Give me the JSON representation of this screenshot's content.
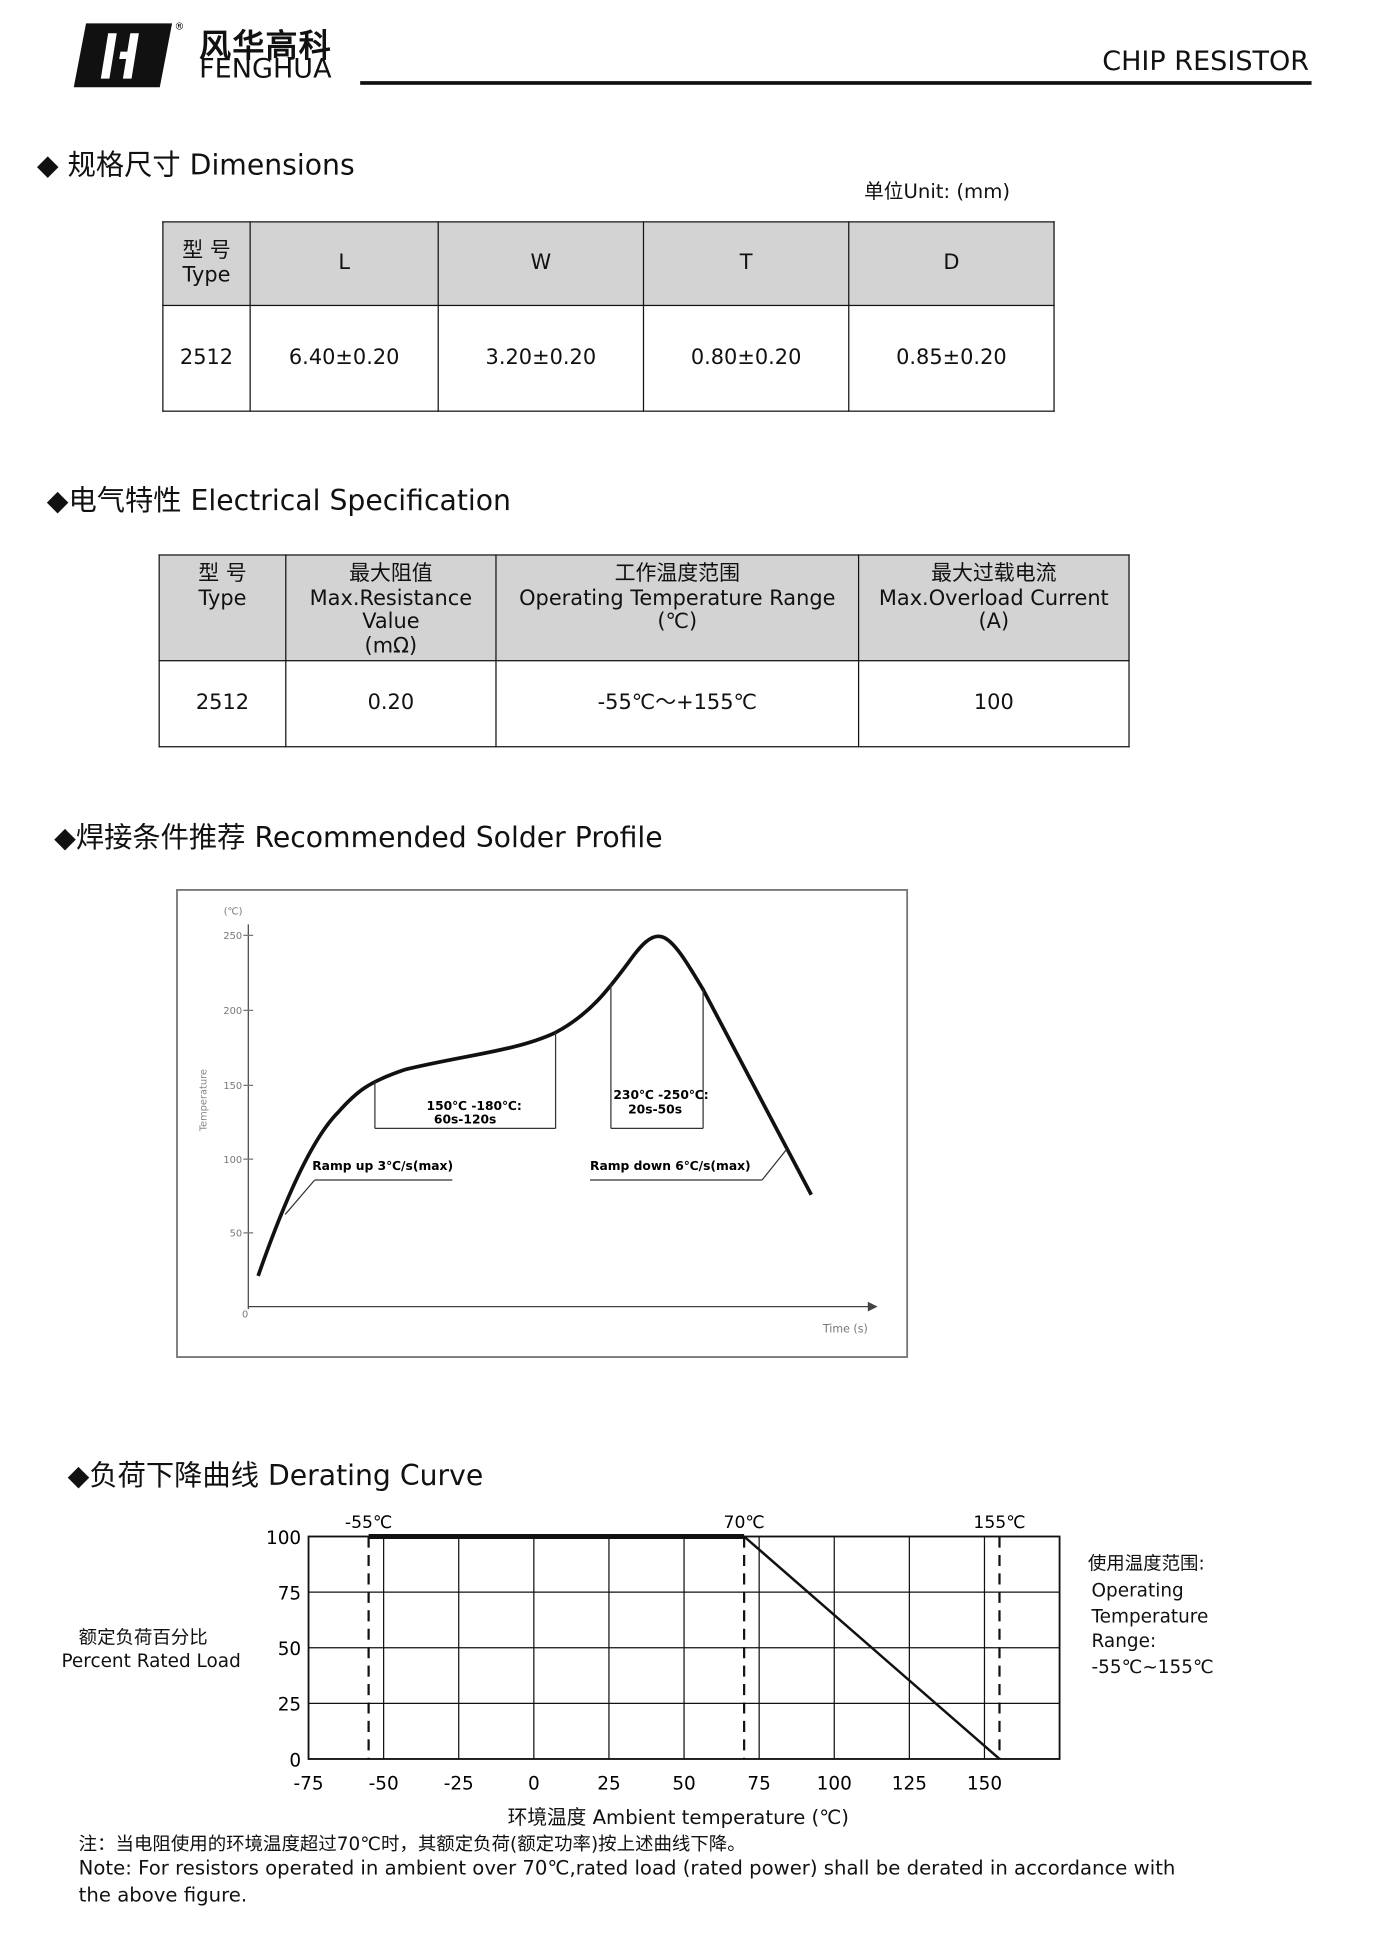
{
  "header": {
    "brand_cn": "风华高科",
    "brand_en": "FENGHUA",
    "registered": "®",
    "doc_title": "CHIP RESISTOR"
  },
  "dimensions": {
    "title": "◆ 规格尺寸 Dimensions",
    "unit": "单位Unit: (mm)",
    "headers": [
      "型 号",
      "Type",
      "L",
      "W",
      "T",
      "D"
    ],
    "row": [
      "2512",
      "6.40±0.20",
      "3.20±0.20",
      "0.80±0.20",
      "0.85±0.20"
    ]
  },
  "electrical": {
    "title": "◆电气特性 Electrical Specification",
    "headers": [
      [
        "型 号",
        "Type"
      ],
      [
        "最大阻值",
        "Max.Resistance",
        "Value",
        "(mΩ)"
      ],
      [
        "工作温度范围",
        "Operating Temperature Range",
        "(℃)"
      ],
      [
        "最大过载电流",
        "Max.Overload Current",
        "(A)"
      ]
    ],
    "row": [
      "2512",
      "0.20",
      "-55℃～+155℃",
      "100"
    ]
  },
  "solder": {
    "title": "◆焊接条件推荐 Recommended Solder Profile",
    "y_unit": "(℃)",
    "ylabel": "Temperature",
    "xlabel": "Time (s)",
    "origin": "0",
    "y_ticks": [
      "250",
      "200",
      "150",
      "100",
      "50"
    ],
    "zone1": [
      "150℃ -180℃:",
      "60s-120s"
    ],
    "zone2": [
      "230℃ -250℃:",
      "20s-50s"
    ],
    "ramp_up": "Ramp up 3℃/s(max)",
    "ramp_down": "Ramp down 6℃/s(max)"
  },
  "derating": {
    "title": "◆负荷下降曲线 Derating Curve",
    "ylabel_cn": "额定负荷百分比",
    "ylabel_en": "Percent Rated Load",
    "xlabel": "环境温度 Ambient temperature (℃)",
    "markers": [
      "-55℃",
      "70℃",
      "155℃"
    ],
    "range_title": "使用温度范围:",
    "range_lines": [
      "Operating",
      "Temperature",
      "Range:",
      "-55℃~155℃"
    ]
  },
  "chart_data": {
    "type": "line",
    "xlabel": "环境温度 Ambient temperature (℃)",
    "ylabel": "Percent Rated Load",
    "xlim": [
      -75,
      175
    ],
    "ylim": [
      0,
      100
    ],
    "grid": true,
    "x_ticks": [
      -75,
      -50,
      -25,
      0,
      25,
      50,
      75,
      100,
      125,
      150
    ],
    "y_ticks": [
      0,
      25,
      50,
      75,
      100
    ],
    "x": [
      -55,
      70,
      155
    ],
    "y": [
      100,
      100,
      0
    ],
    "markers": [
      -55,
      70,
      155
    ]
  },
  "note": {
    "cn": "注：当电阻使用的环境温度超过70℃时，其额定负荷(额定功率)按上述曲线下降。",
    "en1": "Note: For resistors operated in ambient over 70℃,rated  load (rated power) shall be derated in accordance with",
    "en2": "the above figure."
  }
}
